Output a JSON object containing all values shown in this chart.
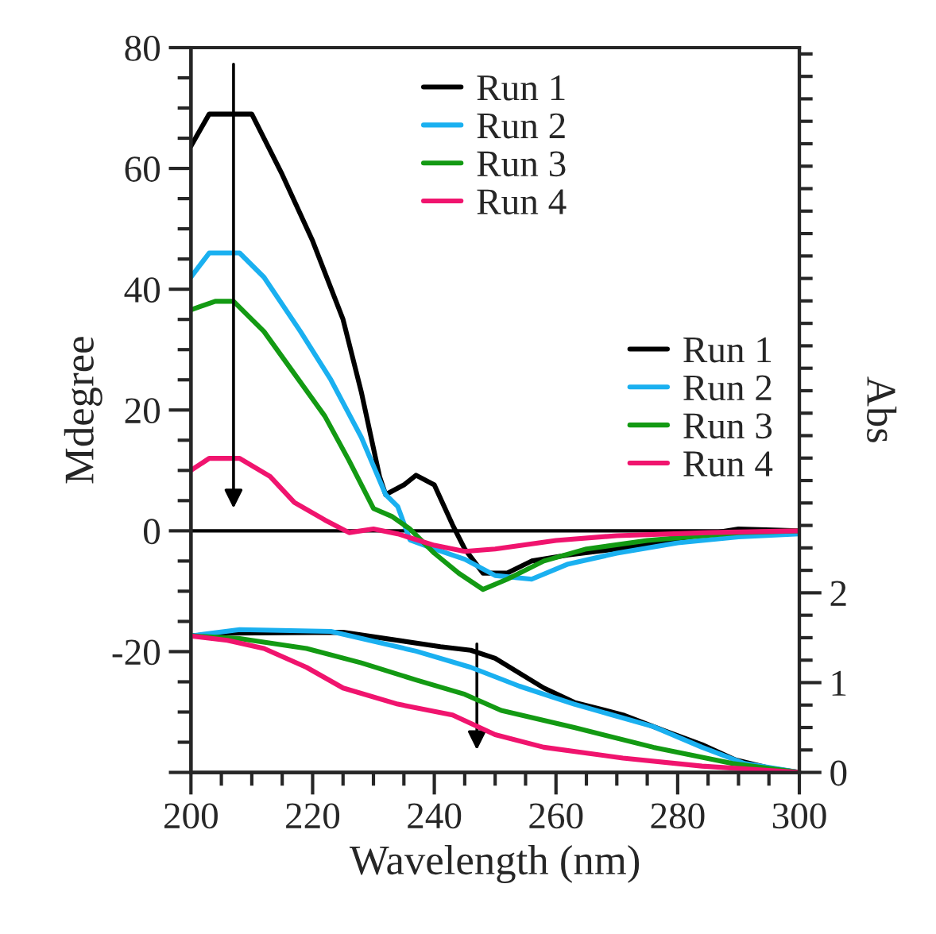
{
  "chart_data": [
    {
      "type": "line",
      "xlabel": "Wavelength (nm)",
      "ylabel": "Mdegree",
      "xlim": [
        200,
        300
      ],
      "xticks": [
        200,
        220,
        240,
        260,
        280,
        300
      ],
      "ylim": [
        -40,
        80
      ],
      "yticks": [
        {
          "value": -40,
          "label": null
        },
        -20,
        0,
        20,
        40,
        60,
        80
      ],
      "tick_labels": "xy",
      "legend": "top",
      "ref_lines": [
        {
          "axis": "y",
          "value": 0,
          "color": "#000000",
          "line_style": "solid"
        }
      ],
      "series": [
        {
          "name": "Run 1",
          "color": "#000000",
          "x": [
            200,
            203,
            210,
            215,
            220,
            225,
            228,
            231,
            232,
            235,
            237,
            240,
            243,
            245,
            248,
            252,
            256,
            262,
            270,
            280,
            290,
            300
          ],
          "values": [
            63.7,
            69,
            69,
            59,
            48,
            35,
            23,
            9,
            6,
            7.6,
            9.2,
            7.6,
            1,
            -3,
            -7,
            -7,
            -5,
            -4,
            -3,
            -1.3,
            0.3,
            0
          ]
        },
        {
          "name": "Run 2",
          "color": "#1ab0f0",
          "x": [
            200,
            203,
            208,
            212,
            218,
            223,
            228,
            232,
            234,
            236,
            240,
            245,
            250,
            256,
            262,
            270,
            280,
            290,
            300
          ],
          "values": [
            42,
            46,
            46,
            42,
            33,
            25,
            15.5,
            6,
            4,
            -1.5,
            -3,
            -4.7,
            -7.4,
            -8,
            -5.5,
            -3.7,
            -2,
            -1,
            -0.5
          ]
        },
        {
          "name": "Run 3",
          "color": "#139a13",
          "x": [
            200,
            204,
            207,
            212,
            217,
            222,
            226,
            230,
            233,
            236,
            240,
            244,
            248,
            252,
            258,
            265,
            275,
            290,
            300
          ],
          "values": [
            36.6,
            38,
            38,
            33,
            26,
            19,
            11.6,
            3.7,
            2.4,
            0.3,
            -3.7,
            -7,
            -9.7,
            -8,
            -5,
            -3,
            -1.6,
            -0.3,
            0
          ]
        },
        {
          "name": "Run 4",
          "color": "#f0146e",
          "x": [
            200,
            203,
            208,
            213,
            217,
            222,
            226,
            230,
            234,
            240,
            245,
            250,
            260,
            270,
            285,
            300
          ],
          "values": [
            10,
            12,
            12,
            9,
            4.7,
            1.8,
            -0.3,
            0.3,
            -0.5,
            -2.4,
            -3.4,
            -3,
            -1.6,
            -0.8,
            -0.3,
            0
          ]
        }
      ]
    },
    {
      "type": "line",
      "ylabel": "Abs",
      "xlim": [
        200,
        300
      ],
      "ylim": [
        0,
        8.07
      ],
      "yticks": [
        0,
        1,
        2
      ],
      "tick_labels": "y",
      "legend": "right",
      "series": [
        {
          "name": "Run 1",
          "color": "#000000",
          "x": [
            200,
            206,
            225,
            241,
            246,
            250,
            258,
            263,
            271,
            278,
            284,
            289.5,
            295,
            300
          ],
          "values": [
            1.52,
            1.55,
            1.56,
            1.4,
            1.36,
            1.27,
            0.94,
            0.78,
            0.64,
            0.46,
            0.31,
            0.14,
            0.05,
            0
          ]
        },
        {
          "name": "Run 2",
          "color": "#1ab0f0",
          "x": [
            200,
            208,
            223,
            237,
            246,
            254,
            263,
            276,
            284,
            291,
            300
          ],
          "values": [
            1.52,
            1.59,
            1.57,
            1.35,
            1.17,
            0.96,
            0.76,
            0.51,
            0.28,
            0.1,
            0
          ]
        },
        {
          "name": "Run 3",
          "color": "#139a13",
          "x": [
            200,
            208,
            219,
            228,
            237,
            245,
            251,
            263,
            276,
            289,
            300
          ],
          "values": [
            1.52,
            1.49,
            1.38,
            1.22,
            1.03,
            0.87,
            0.69,
            0.5,
            0.28,
            0.1,
            0
          ]
        },
        {
          "name": "Run 4",
          "color": "#f0146e",
          "x": [
            200,
            206,
            212,
            219,
            225,
            234,
            243,
            250,
            258,
            271,
            284,
            300
          ],
          "values": [
            1.52,
            1.47,
            1.38,
            1.17,
            0.94,
            0.76,
            0.64,
            0.42,
            0.28,
            0.16,
            0.07,
            0
          ]
        }
      ]
    }
  ]
}
